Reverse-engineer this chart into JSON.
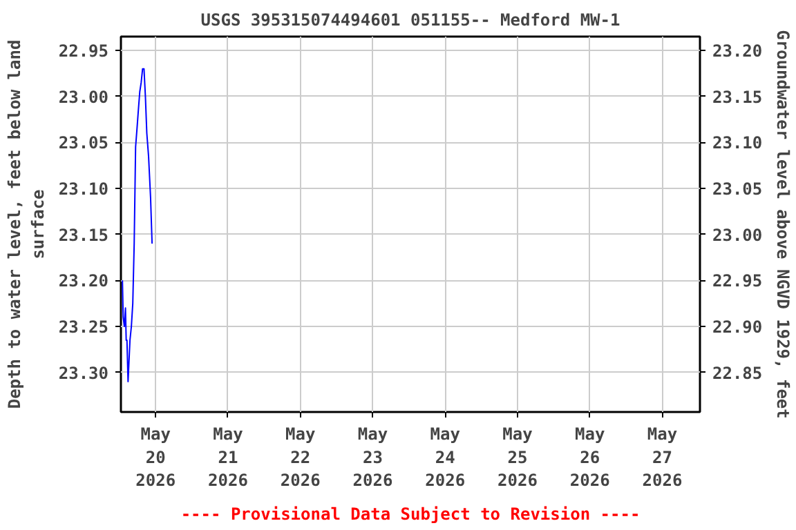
{
  "chart_data": {
    "type": "line",
    "title": "USGS 395315074494601 051155-- Medford MW-1",
    "ylabel": "Depth to water level, feet below land surface",
    "y2label": "Groundwater level above NGVD 1929, feet",
    "annotations": [
      "---- Provisional Data Subject to Revision ----"
    ],
    "x": [
      "2026-05-19T13:00",
      "2026-05-19T13:15",
      "2026-05-19T13:38",
      "2026-05-19T14:00",
      "2026-05-19T14:15",
      "2026-05-19T14:30",
      "2026-05-19T14:52",
      "2026-05-19T15:30",
      "2026-05-19T15:58",
      "2026-05-19T16:26",
      "2026-05-19T16:54",
      "2026-05-19T17:22",
      "2026-05-19T17:50",
      "2026-05-19T18:17",
      "2026-05-19T18:45",
      "2026-05-19T19:13",
      "2026-05-19T19:41",
      "2026-05-19T20:09",
      "2026-05-19T20:37",
      "2026-05-19T21:05",
      "2026-05-19T21:40",
      "2026-05-19T22:20",
      "2026-05-19T22:50"
    ],
    "series": [
      {
        "color": "#0000ff",
        "values": [
          23.2,
          23.24,
          23.25,
          23.23,
          23.265,
          23.265,
          23.31,
          23.265,
          23.25,
          23.225,
          23.16,
          23.055,
          23.035,
          23.015,
          22.995,
          22.985,
          22.97,
          22.97,
          23.0,
          23.04,
          23.065,
          23.11,
          23.16
        ]
      }
    ],
    "xlim": [
      "2026-05-19T12:30",
      "2026-05-27T12:30"
    ],
    "xticks": [
      {
        "value": "2026-05-20",
        "label": "May\n20\n2026"
      },
      {
        "value": "2026-05-21",
        "label": "May\n21\n2026"
      },
      {
        "value": "2026-05-22",
        "label": "May\n22\n2026"
      },
      {
        "value": "2026-05-23",
        "label": "May\n23\n2026"
      },
      {
        "value": "2026-05-24",
        "label": "May\n24\n2026"
      },
      {
        "value": "2026-05-25",
        "label": "May\n25\n2026"
      },
      {
        "value": "2026-05-26",
        "label": "May\n26\n2026"
      },
      {
        "value": "2026-05-27",
        "label": "May\n27\n2026"
      }
    ],
    "ylim": [
      23.343,
      22.935
    ],
    "yticks": [
      {
        "value": 22.95,
        "label": "22.95"
      },
      {
        "value": 23.0,
        "label": "23.00"
      },
      {
        "value": 23.05,
        "label": "23.05"
      },
      {
        "value": 23.1,
        "label": "23.10"
      },
      {
        "value": 23.15,
        "label": "23.15"
      },
      {
        "value": 23.2,
        "label": "23.20"
      },
      {
        "value": 23.25,
        "label": "23.25"
      },
      {
        "value": 23.3,
        "label": "23.30"
      }
    ],
    "y2lim": [
      22.807,
      23.215
    ],
    "y2ticks": [
      {
        "value": 22.85,
        "label": "22.85"
      },
      {
        "value": 22.9,
        "label": "22.90"
      },
      {
        "value": 22.95,
        "label": "22.95"
      },
      {
        "value": 23.0,
        "label": "23.00"
      },
      {
        "value": 23.05,
        "label": "23.05"
      },
      {
        "value": 23.1,
        "label": "23.10"
      },
      {
        "value": 23.15,
        "label": "23.15"
      },
      {
        "value": 23.2,
        "label": "23.20"
      }
    ],
    "grid": true,
    "line_style": "solid",
    "marker": "none"
  }
}
